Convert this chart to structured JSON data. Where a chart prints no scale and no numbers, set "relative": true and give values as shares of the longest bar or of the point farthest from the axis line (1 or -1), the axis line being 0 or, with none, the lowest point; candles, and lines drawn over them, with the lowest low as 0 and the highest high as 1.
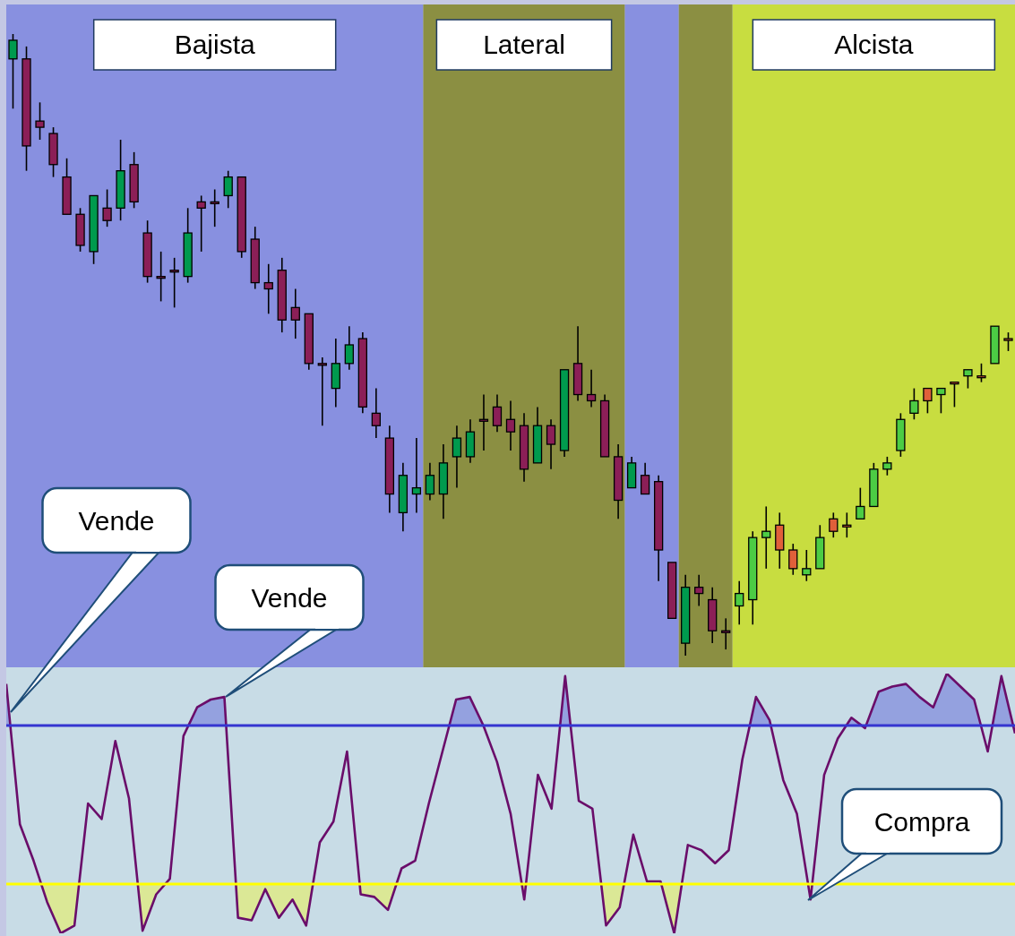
{
  "chart_data": [
    {
      "type": "candlestick",
      "relative": true,
      "tick_labels": false,
      "categories": [
        null,
        null,
        null,
        null,
        null,
        null,
        null,
        null,
        null,
        null,
        null,
        null,
        null,
        null,
        null,
        null,
        null,
        null,
        null,
        null,
        null,
        null,
        null,
        null,
        null,
        null,
        null,
        null,
        null,
        null,
        null,
        null,
        null,
        null,
        null,
        null,
        null,
        null,
        null,
        null,
        null,
        null,
        null,
        null,
        null,
        null,
        null,
        null,
        null,
        null,
        null,
        null,
        null,
        null,
        null,
        null,
        null,
        null,
        null,
        null,
        null,
        null,
        null,
        null,
        null,
        null,
        null,
        null,
        null,
        null,
        null,
        null,
        null,
        null,
        null
      ],
      "ohlc": [
        [
          0.96,
          1.0,
          0.88,
          0.99
        ],
        [
          0.96,
          0.98,
          0.78,
          0.82
        ],
        [
          0.86,
          0.89,
          0.83,
          0.85
        ],
        [
          0.84,
          0.85,
          0.77,
          0.79
        ],
        [
          0.77,
          0.8,
          0.71,
          0.71
        ],
        [
          0.71,
          0.72,
          0.65,
          0.66
        ],
        [
          0.65,
          0.74,
          0.63,
          0.74
        ],
        [
          0.72,
          0.75,
          0.69,
          0.7
        ],
        [
          0.72,
          0.83,
          0.7,
          0.78
        ],
        [
          0.79,
          0.81,
          0.72,
          0.73
        ],
        [
          0.68,
          0.7,
          0.6,
          0.61
        ],
        [
          0.61,
          0.65,
          0.57,
          0.61
        ],
        [
          0.62,
          0.64,
          0.56,
          0.62
        ],
        [
          0.61,
          0.72,
          0.6,
          0.68
        ],
        [
          0.73,
          0.74,
          0.65,
          0.72
        ],
        [
          0.73,
          0.75,
          0.69,
          0.73
        ],
        [
          0.74,
          0.78,
          0.72,
          0.77
        ],
        [
          0.77,
          0.77,
          0.64,
          0.65
        ],
        [
          0.67,
          0.69,
          0.59,
          0.6
        ],
        [
          0.6,
          0.63,
          0.55,
          0.59
        ],
        [
          0.62,
          0.64,
          0.52,
          0.54
        ],
        [
          0.56,
          0.59,
          0.51,
          0.54
        ],
        [
          0.55,
          0.55,
          0.46,
          0.47
        ],
        [
          0.47,
          0.48,
          0.37,
          0.47
        ],
        [
          0.43,
          0.51,
          0.4,
          0.47
        ],
        [
          0.47,
          0.53,
          0.46,
          0.5
        ],
        [
          0.51,
          0.52,
          0.39,
          0.4
        ],
        [
          0.39,
          0.43,
          0.35,
          0.37
        ],
        [
          0.35,
          0.37,
          0.23,
          0.26
        ],
        [
          0.23,
          0.31,
          0.2,
          0.29
        ],
        [
          0.26,
          0.35,
          0.23,
          0.27
        ],
        [
          0.26,
          0.31,
          0.25,
          0.29
        ],
        [
          0.26,
          0.34,
          0.22,
          0.31
        ],
        [
          0.32,
          0.37,
          0.27,
          0.35
        ],
        [
          0.32,
          0.38,
          0.31,
          0.36
        ],
        [
          0.38,
          0.42,
          0.33,
          0.38
        ],
        [
          0.4,
          0.42,
          0.36,
          0.37
        ],
        [
          0.38,
          0.41,
          0.33,
          0.36
        ],
        [
          0.37,
          0.39,
          0.28,
          0.3
        ],
        [
          0.31,
          0.4,
          0.31,
          0.37
        ],
        [
          0.37,
          0.38,
          0.3,
          0.34
        ],
        [
          0.33,
          0.46,
          0.32,
          0.46
        ],
        [
          0.47,
          0.53,
          0.41,
          0.42
        ],
        [
          0.42,
          0.46,
          0.4,
          0.41
        ],
        [
          0.41,
          0.42,
          0.32,
          0.32
        ],
        [
          0.32,
          0.34,
          0.22,
          0.25
        ],
        [
          0.27,
          0.32,
          0.27,
          0.31
        ],
        [
          0.29,
          0.31,
          0.26,
          0.26
        ],
        [
          0.28,
          0.29,
          0.12,
          0.17
        ],
        [
          0.15,
          0.15,
          0.06,
          0.06
        ],
        [
          0.02,
          0.13,
          0.0,
          0.11
        ],
        [
          0.11,
          0.13,
          0.08,
          0.1
        ],
        [
          0.09,
          0.11,
          0.02,
          0.04
        ],
        [
          0.04,
          0.06,
          0.01,
          0.04
        ],
        [
          0.08,
          0.12,
          0.05,
          0.1
        ],
        [
          0.09,
          0.2,
          0.05,
          0.19
        ],
        [
          0.19,
          0.24,
          0.14,
          0.2
        ],
        [
          0.21,
          0.23,
          0.14,
          0.17
        ],
        [
          0.17,
          0.18,
          0.13,
          0.14
        ],
        [
          0.13,
          0.17,
          0.12,
          0.14
        ],
        [
          0.14,
          0.21,
          0.14,
          0.19
        ],
        [
          0.22,
          0.23,
          0.19,
          0.2
        ],
        [
          0.21,
          0.23,
          0.19,
          0.21
        ],
        [
          0.22,
          0.27,
          0.22,
          0.24
        ],
        [
          0.24,
          0.31,
          0.24,
          0.3
        ],
        [
          0.3,
          0.32,
          0.29,
          0.31
        ],
        [
          0.33,
          0.39,
          0.32,
          0.38
        ],
        [
          0.39,
          0.43,
          0.38,
          0.41
        ],
        [
          0.43,
          0.43,
          0.39,
          0.41
        ],
        [
          0.42,
          0.43,
          0.39,
          0.43
        ],
        [
          0.44,
          0.44,
          0.4,
          0.44
        ],
        [
          0.45,
          0.46,
          0.43,
          0.46
        ],
        [
          0.45,
          0.47,
          0.44,
          0.45
        ],
        [
          0.47,
          0.53,
          0.47,
          0.53
        ],
        [
          0.51,
          0.52,
          0.49,
          0.51
        ]
      ],
      "colors": [
        "#009a4e",
        "#8b1f57",
        "#8b1f57",
        "#8b1f57",
        "#8b1f57",
        "#8b1f57",
        "#009a4e",
        "#8b1f57",
        "#009a4e",
        "#8b1f57",
        "#8b1f57",
        "#8b1f57",
        "#8b1f57",
        "#009a4e",
        "#8b1f57",
        "#8b1f57",
        "#009a4e",
        "#8b1f57",
        "#8b1f57",
        "#8b1f57",
        "#8b1f57",
        "#8b1f57",
        "#8b1f57",
        "#8b1f57",
        "#009a4e",
        "#009a4e",
        "#8b1f57",
        "#8b1f57",
        "#8b1f57",
        "#009a4e",
        "#009a4e",
        "#009a4e",
        "#009a4e",
        "#009a4e",
        "#009a4e",
        "#8b1f57",
        "#8b1f57",
        "#8b1f57",
        "#8b1f57",
        "#009a4e",
        "#8b1f57",
        "#009a4e",
        "#8b1f57",
        "#8b1f57",
        "#8b1f57",
        "#8b1f57",
        "#009a4e",
        "#8b1f57",
        "#8b1f57",
        "#8b1f57",
        "#009a4e",
        "#8b1f57",
        "#8b1f57",
        "#8b1f57",
        "#4ccc44",
        "#4ccc44",
        "#4ccc44",
        "#e0603a",
        "#e0603a",
        "#4ccc44",
        "#4ccc44",
        "#e0603a",
        "#e0603a",
        "#4ccc44",
        "#4ccc44",
        "#4ccc44",
        "#4ccc44",
        "#4ccc44",
        "#e0603a",
        "#4ccc44",
        "#e0603a",
        "#4ccc44",
        "#e0603a",
        "#4ccc44",
        "#e0603a"
      ],
      "annotations": [
        "Bajista",
        "Lateral",
        "Alcista"
      ]
    },
    {
      "type": "line",
      "relative": true,
      "tick_labels": false,
      "categories": [
        null,
        null,
        null,
        null,
        null,
        null,
        null,
        null,
        null,
        null,
        null,
        null,
        null,
        null,
        null,
        null,
        null,
        null,
        null,
        null,
        null,
        null,
        null,
        null,
        null,
        null,
        null,
        null,
        null,
        null,
        null,
        null,
        null,
        null,
        null,
        null,
        null,
        null,
        null,
        null,
        null,
        null,
        null,
        null,
        null,
        null,
        null,
        null,
        null,
        null,
        null,
        null,
        null,
        null,
        null,
        null,
        null,
        null,
        null,
        null,
        null,
        null,
        null,
        null,
        null,
        null,
        null,
        null,
        null,
        null,
        null,
        null,
        null,
        null,
        null
      ],
      "series": [
        {
          "color": "#6a0d6a",
          "values": [
            0.96,
            0.42,
            0.28,
            0.12,
            0.0,
            0.03,
            0.5,
            0.44,
            0.74,
            0.52,
            0.01,
            0.15,
            0.21,
            0.76,
            0.87,
            0.9,
            0.91,
            0.06,
            0.05,
            0.17,
            0.06,
            0.13,
            0.03,
            0.35,
            0.43,
            0.7,
            0.15,
            0.14,
            0.09,
            0.25,
            0.28,
            0.5,
            0.7,
            0.9,
            0.91,
            0.8,
            0.66,
            0.46,
            0.13,
            0.61,
            0.48,
            0.99,
            0.51,
            0.48,
            0.03,
            0.1,
            0.38,
            0.2,
            0.2,
            0.0,
            0.34,
            0.32,
            0.27,
            0.32,
            0.67,
            0.91,
            0.82,
            0.59,
            0.46,
            0.13,
            0.61,
            0.75,
            0.83,
            0.79,
            0.93,
            0.95,
            0.96,
            0.91,
            0.87,
            1.0,
            0.95,
            0.9,
            0.7,
            0.99,
            0.77
          ]
        }
      ],
      "ref_lines": [
        {
          "axis": "y",
          "value": 0.8,
          "label": null,
          "color": "#3535d0"
        },
        {
          "axis": "y",
          "value": 0.19,
          "label": null,
          "color": "#ffff00"
        }
      ],
      "annotations": [
        "Vende",
        "Vende",
        "Compra"
      ]
    }
  ]
}
